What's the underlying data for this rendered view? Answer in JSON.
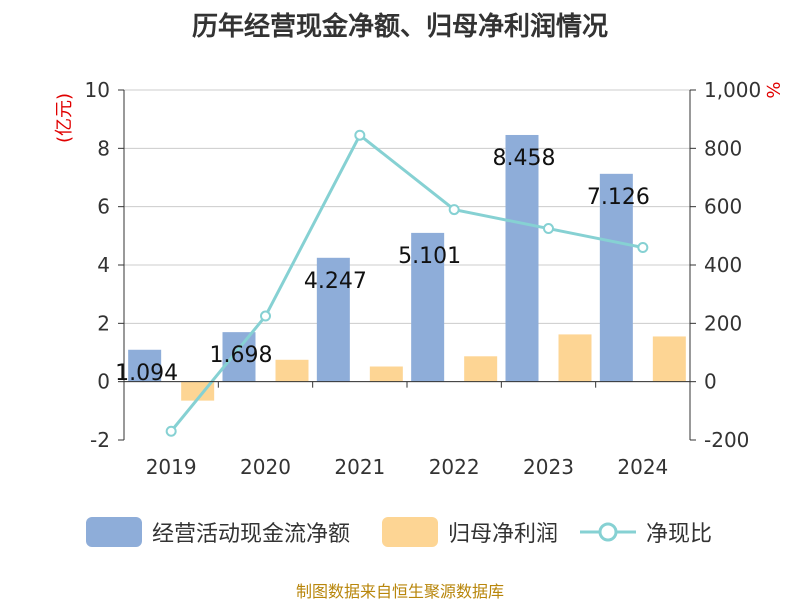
{
  "title": "历年经营现金净额、归母净利润情况",
  "footer": "制图数据来自恒生聚源数据库",
  "colors": {
    "bar1": "#8eadd9",
    "bar2": "#fdd594",
    "line": "#86d1d3",
    "axisUnitLeft": "#e00000",
    "axisUnitRight": "#e00000"
  },
  "chart_data": {
    "type": "bar",
    "categories": [
      "2019",
      "2020",
      "2021",
      "2022",
      "2023",
      "2024"
    ],
    "series": [
      {
        "name": "经营活动现金流净额",
        "values": [
          1.094,
          1.698,
          4.247,
          5.101,
          8.458,
          7.126
        ],
        "axis": "left",
        "labels": [
          "1.094",
          "1.698",
          "4.247",
          "5.101",
          "8.458",
          "7.126"
        ]
      },
      {
        "name": "归母净利润",
        "values": [
          -0.65,
          0.75,
          0.52,
          0.87,
          1.62,
          1.55
        ],
        "axis": "left"
      },
      {
        "name": "净现比",
        "type": "line",
        "values": [
          -170,
          225,
          845,
          590,
          525,
          460
        ],
        "axis": "right"
      }
    ],
    "yleft": {
      "unit": "(亿元)",
      "ticks": [
        "10",
        "8",
        "6",
        "4",
        "2",
        "0",
        "-2"
      ],
      "min": -2,
      "max": 10
    },
    "yright": {
      "unit": "%",
      "ticks": [
        "1,000",
        "800",
        "600",
        "400",
        "200",
        "0",
        "-200"
      ],
      "min": -200,
      "max": 1000
    }
  }
}
